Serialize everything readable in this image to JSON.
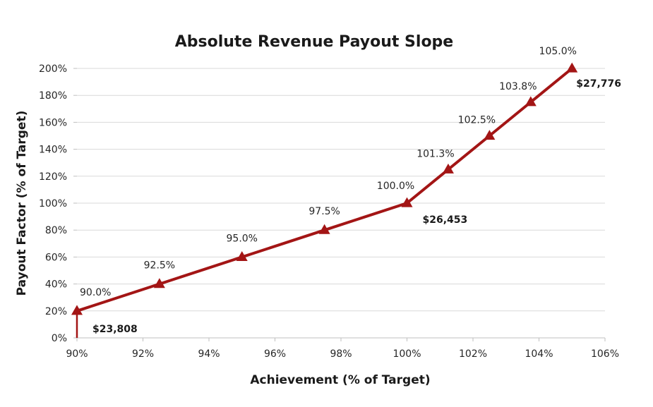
{
  "chart_data": {
    "type": "line",
    "title": "Absolute Revenue Payout Slope",
    "xlabel": "Achievement (% of Target)",
    "ylabel": "Payout Factor (% of Target)",
    "xlim": [
      90,
      106
    ],
    "ylim": [
      0,
      200
    ],
    "x_ticks": [
      90,
      92,
      94,
      96,
      98,
      100,
      102,
      104,
      106
    ],
    "y_ticks": [
      0,
      20,
      40,
      60,
      80,
      100,
      120,
      140,
      160,
      180,
      200
    ],
    "x_tick_labels": [
      "90%",
      "92%",
      "94%",
      "96%",
      "98%",
      "100%",
      "102%",
      "104%",
      "106%"
    ],
    "y_tick_labels": [
      "0%",
      "20%",
      "40%",
      "60%",
      "80%",
      "100%",
      "120%",
      "140%",
      "160%",
      "180%",
      "200%"
    ],
    "grid": "horizontal",
    "legend": "none",
    "series": [
      {
        "x": [
          90.0,
          92.5,
          95.0,
          97.5,
          100.0,
          101.25,
          102.5,
          103.75,
          105.0
        ],
        "y": [
          20,
          40,
          60,
          80,
          100,
          125,
          150,
          175,
          200
        ],
        "point_labels": [
          "90.0%",
          "92.5%",
          "95.0%",
          "97.5%",
          "100.0%",
          "101.3%",
          "102.5%",
          "103.8%",
          "105.0%"
        ],
        "color": "#a31515",
        "marker": "triangle"
      }
    ],
    "annotations": [
      {
        "text": "$23,808",
        "x": 90.0,
        "y": 20
      },
      {
        "text": "$26,453",
        "x": 100.0,
        "y": 100
      },
      {
        "text": "$27,776",
        "x": 105.0,
        "y": 200
      }
    ]
  }
}
